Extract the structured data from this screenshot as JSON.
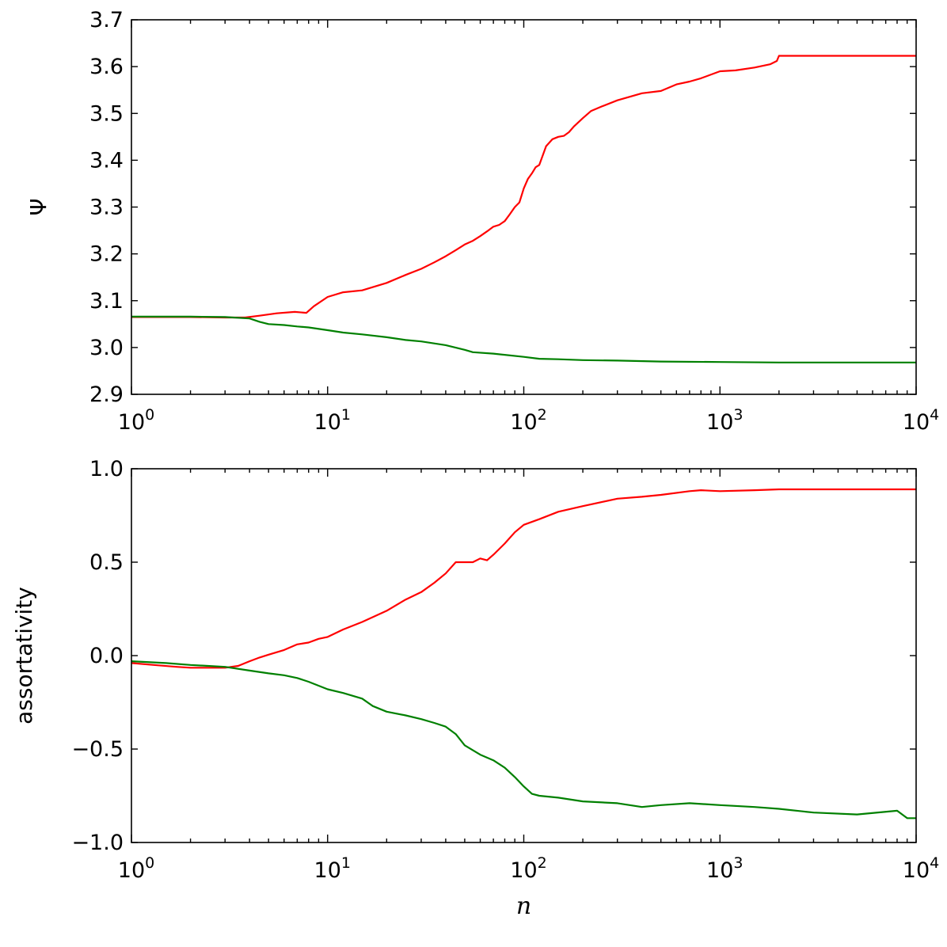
{
  "chart_data": [
    {
      "type": "line",
      "xscale": "log",
      "xlim": [
        1,
        10000
      ],
      "ylim": [
        2.9,
        3.7
      ],
      "xlabel": "",
      "ylabel": "Ψ",
      "yticks": [
        "2.9",
        "3.0",
        "3.1",
        "3.2",
        "3.3",
        "3.4",
        "3.5",
        "3.6",
        "3.7"
      ],
      "xticks": [
        {
          "base": "10",
          "exp": "0"
        },
        {
          "base": "10",
          "exp": "1"
        },
        {
          "base": "10",
          "exp": "2"
        },
        {
          "base": "10",
          "exp": "3"
        },
        {
          "base": "10",
          "exp": "4"
        }
      ],
      "series": [
        {
          "color": "#ff0000",
          "x": [
            1,
            2,
            3,
            3.8,
            4.5,
            5.5,
            6.8,
            7.8,
            8.5,
            10,
            12,
            15,
            20,
            25,
            30,
            35,
            40,
            45,
            50,
            55,
            60,
            65,
            70,
            75,
            80,
            85,
            90,
            95,
            100,
            105,
            110,
            115,
            120,
            130,
            140,
            150,
            160,
            170,
            180,
            200,
            220,
            250,
            300,
            400,
            500,
            600,
            700,
            800,
            1000,
            1200,
            1500,
            1800,
            1950,
            2000,
            3000,
            5000,
            10000
          ],
          "y": [
            3.065,
            3.065,
            3.064,
            3.064,
            3.068,
            3.073,
            3.076,
            3.074,
            3.088,
            3.108,
            3.118,
            3.122,
            3.138,
            3.155,
            3.168,
            3.182,
            3.195,
            3.208,
            3.22,
            3.228,
            3.238,
            3.248,
            3.258,
            3.262,
            3.27,
            3.285,
            3.3,
            3.31,
            3.34,
            3.36,
            3.372,
            3.385,
            3.39,
            3.43,
            3.445,
            3.45,
            3.452,
            3.46,
            3.472,
            3.49,
            3.505,
            3.515,
            3.528,
            3.543,
            3.548,
            3.562,
            3.568,
            3.575,
            3.59,
            3.592,
            3.598,
            3.605,
            3.612,
            3.623,
            3.623,
            3.623,
            3.623
          ]
        },
        {
          "color": "#008000",
          "x": [
            1,
            2,
            3,
            4,
            4.5,
            5,
            6,
            7,
            8,
            10,
            12,
            15,
            20,
            25,
            30,
            40,
            50,
            55,
            70,
            100,
            120,
            150,
            200,
            300,
            500,
            1000,
            2000,
            5000,
            10000
          ],
          "y": [
            3.066,
            3.066,
            3.065,
            3.062,
            3.055,
            3.05,
            3.048,
            3.045,
            3.043,
            3.037,
            3.032,
            3.028,
            3.022,
            3.016,
            3.013,
            3.005,
            2.995,
            2.99,
            2.987,
            2.98,
            2.976,
            2.975,
            2.973,
            2.972,
            2.97,
            2.969,
            2.968,
            2.968,
            2.968
          ]
        }
      ]
    },
    {
      "type": "line",
      "xscale": "log",
      "xlim": [
        1,
        10000
      ],
      "ylim": [
        -1.0,
        1.0
      ],
      "xlabel": "n",
      "ylabel": "assortativity",
      "yticks": [
        "−1.0",
        "−0.5",
        "0.0",
        "0.5",
        "1.0"
      ],
      "xticks": [
        {
          "base": "10",
          "exp": "0"
        },
        {
          "base": "10",
          "exp": "1"
        },
        {
          "base": "10",
          "exp": "2"
        },
        {
          "base": "10",
          "exp": "3"
        },
        {
          "base": "10",
          "exp": "4"
        }
      ],
      "series": [
        {
          "color": "#ff0000",
          "x": [
            1,
            1.3,
            1.7,
            2,
            2.5,
            3,
            3.5,
            4,
            4.5,
            5,
            6,
            7,
            8,
            9,
            10,
            12,
            15,
            20,
            25,
            30,
            35,
            40,
            45,
            50,
            55,
            60,
            65,
            70,
            80,
            90,
            100,
            120,
            150,
            200,
            300,
            400,
            500,
            700,
            800,
            1000,
            1500,
            2000,
            3000,
            5000,
            10000
          ],
          "y": [
            -0.04,
            -0.05,
            -0.06,
            -0.065,
            -0.065,
            -0.065,
            -0.055,
            -0.03,
            -0.01,
            0.005,
            0.03,
            0.06,
            0.07,
            0.09,
            0.1,
            0.14,
            0.18,
            0.24,
            0.3,
            0.34,
            0.39,
            0.44,
            0.5,
            0.5,
            0.5,
            0.52,
            0.51,
            0.54,
            0.6,
            0.66,
            0.7,
            0.73,
            0.77,
            0.8,
            0.84,
            0.85,
            0.86,
            0.88,
            0.885,
            0.88,
            0.885,
            0.89,
            0.89,
            0.89,
            0.89
          ]
        },
        {
          "color": "#008000",
          "x": [
            1,
            1.5,
            2,
            3,
            4,
            5,
            6,
            7,
            8,
            10,
            12,
            15,
            17,
            20,
            25,
            30,
            35,
            40,
            45,
            50,
            60,
            70,
            80,
            90,
            100,
            110,
            120,
            150,
            200,
            300,
            400,
            500,
            700,
            1000,
            1500,
            2000,
            3000,
            5000,
            8000,
            9000,
            10000
          ],
          "y": [
            -0.03,
            -0.04,
            -0.05,
            -0.06,
            -0.08,
            -0.095,
            -0.105,
            -0.12,
            -0.14,
            -0.18,
            -0.2,
            -0.23,
            -0.27,
            -0.3,
            -0.32,
            -0.34,
            -0.36,
            -0.38,
            -0.42,
            -0.48,
            -0.53,
            -0.56,
            -0.6,
            -0.65,
            -0.7,
            -0.74,
            -0.75,
            -0.76,
            -0.78,
            -0.79,
            -0.81,
            -0.8,
            -0.79,
            -0.8,
            -0.81,
            -0.82,
            -0.84,
            -0.85,
            -0.83,
            -0.87,
            -0.87
          ]
        }
      ]
    }
  ]
}
